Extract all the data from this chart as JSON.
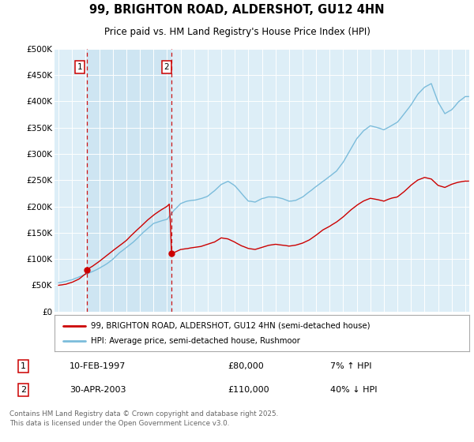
{
  "title": "99, BRIGHTON ROAD, ALDERSHOT, GU12 4HN",
  "subtitle": "Price paid vs. HM Land Registry's House Price Index (HPI)",
  "legend_line1": "99, BRIGHTON ROAD, ALDERSHOT, GU12 4HN (semi-detached house)",
  "legend_line2": "HPI: Average price, semi-detached house, Rushmoor",
  "transaction1_date": "10-FEB-1997",
  "transaction1_price": "£80,000",
  "transaction1_hpi": "7% ↑ HPI",
  "transaction1_year": 1997.1,
  "transaction1_value": 80000,
  "transaction2_date": "30-APR-2003",
  "transaction2_price": "£110,000",
  "transaction2_hpi": "40% ↓ HPI",
  "transaction2_year": 2003.33,
  "transaction2_value": 110000,
  "hpi_color": "#7bbcdb",
  "price_color": "#cc0000",
  "vline_color": "#cc0000",
  "dot_color": "#cc0000",
  "plot_bg_color": "#ddeef7",
  "shade_color": "#c5dff0",
  "ylim": [
    0,
    500000
  ],
  "ytick_values": [
    0,
    50000,
    100000,
    150000,
    200000,
    250000,
    300000,
    350000,
    400000,
    450000,
    500000
  ],
  "ytick_labels": [
    "£0",
    "£50K",
    "£100K",
    "£150K",
    "£200K",
    "£250K",
    "£300K",
    "£350K",
    "£400K",
    "£450K",
    "£500K"
  ],
  "xlim_start": 1994.7,
  "xlim_end": 2025.3,
  "footer": "Contains HM Land Registry data © Crown copyright and database right 2025.\nThis data is licensed under the Open Government Licence v3.0."
}
